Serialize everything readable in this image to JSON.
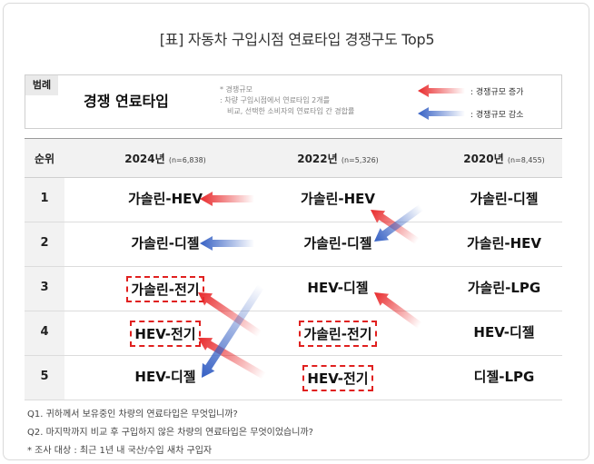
{
  "title": "[표] 자동차 구입시점 연료타입 경쟁구도 Top5",
  "legend": {
    "label": "범례",
    "main": "경쟁 연료타입",
    "note1": "* 경쟁규모",
    "note2": ": 차량 구입시점에서 연료타입 2개를",
    "note3": "비교, 선택한 소비자의 연료타입 간 경합률",
    "increase": ": 경쟁규모 증가",
    "decrease": ": 경쟁규모 감소",
    "increase_color": "#e8282a",
    "decrease_color": "#3560c4"
  },
  "table": {
    "rank_header": "순위",
    "columns": [
      {
        "year": "2024년",
        "n": "(n=6,838)"
      },
      {
        "year": "2022년",
        "n": "(n=5,326)"
      },
      {
        "year": "2020년",
        "n": "(n=8,455)"
      }
    ],
    "rows": [
      {
        "rank": "1",
        "y2024": "가솔린-HEV",
        "y2022": "가솔린-HEV",
        "y2020": "가솔린-디젤"
      },
      {
        "rank": "2",
        "y2024": "가솔린-디젤",
        "y2022": "가솔린-디젤",
        "y2020": "가솔린-HEV"
      },
      {
        "rank": "3",
        "y2024": "가솔린-전기",
        "y2022": "HEV-디젤",
        "y2020": "가솔린-LPG"
      },
      {
        "rank": "4",
        "y2024": "HEV-전기",
        "y2022": "가솔린-전기",
        "y2020": "HEV-디젤"
      },
      {
        "rank": "5",
        "y2024": "HEV-디젤",
        "y2022": "HEV-전기",
        "y2020": "디젤-LPG"
      }
    ]
  },
  "footer": {
    "q1": "Q1. 귀하께서 보유중인 차량의 연료타입은 무엇입니까?",
    "q2": "Q2. 마지막까지 비교 후 구입하지 않은 차량의 연료타입은 무엇이었습니까?",
    "note": "* 조사 대상 : 최근 1년 내 국산/수입 새차 구입자"
  }
}
